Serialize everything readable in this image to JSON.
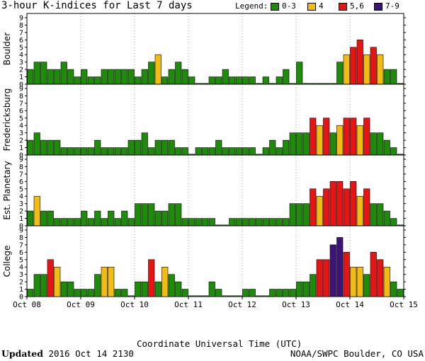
{
  "title": "3-hour K-indices for Last 7 days",
  "legend": {
    "label": "Legend:",
    "entries": [
      {
        "label": "0-3",
        "color": "#1e8c0a"
      },
      {
        "label": "4",
        "color": "#f2bd13"
      },
      {
        "label": "5,6",
        "color": "#e81414"
      },
      {
        "label": "7-9",
        "color": "#3c1478"
      }
    ]
  },
  "footer": {
    "updated_label": "Updated",
    "updated_value": "2016 Oct 14 2130",
    "credit": "NOAA/SWPC Boulder, CO USA"
  },
  "chart_data": {
    "type": "bar",
    "xlabel": "Coordinate Universal Time (UTC)",
    "x_ticks": [
      "Oct 08",
      "Oct 09",
      "Oct 10",
      "Oct 11",
      "Oct 12",
      "Oct 13",
      "Oct 14",
      "Oct 15"
    ],
    "ylim": [
      0,
      9
    ],
    "y_ticks": [
      0,
      1,
      2,
      3,
      4,
      5,
      6,
      7,
      8,
      9
    ],
    "bins_per_day": 8,
    "color_scale": {
      "0-3": "#1e8c0a",
      "4": "#f2bd13",
      "5,6": "#e81414",
      "7-9": "#3c1478"
    },
    "panels": [
      {
        "name": "Boulder",
        "values": [
          2,
          3,
          3,
          2,
          2,
          3,
          2,
          1,
          2,
          1,
          1,
          2,
          2,
          2,
          2,
          2,
          1,
          2,
          3,
          4,
          1,
          2,
          3,
          2,
          1,
          0,
          0,
          1,
          1,
          2,
          1,
          1,
          1,
          1,
          0,
          1,
          0,
          1,
          2,
          0,
          3,
          0,
          0,
          0,
          0,
          0,
          3,
          4,
          5,
          6,
          4,
          5,
          4,
          2,
          2,
          0
        ]
      },
      {
        "name": "Fredericksburg",
        "values": [
          2,
          3,
          2,
          2,
          2,
          1,
          1,
          1,
          1,
          1,
          2,
          1,
          1,
          1,
          1,
          2,
          2,
          3,
          1,
          2,
          2,
          2,
          1,
          1,
          0,
          1,
          1,
          1,
          2,
          1,
          1,
          1,
          1,
          1,
          0,
          1,
          2,
          1,
          2,
          3,
          3,
          3,
          5,
          4,
          5,
          3,
          4,
          5,
          5,
          4,
          5,
          3,
          3,
          2,
          1,
          0
        ]
      },
      {
        "name": "Est. Planetary",
        "values": [
          2,
          4,
          2,
          2,
          1,
          1,
          1,
          1,
          2,
          1,
          2,
          1,
          2,
          1,
          2,
          1,
          3,
          3,
          3,
          2,
          2,
          3,
          3,
          1,
          1,
          1,
          1,
          1,
          0,
          0,
          1,
          1,
          1,
          1,
          1,
          1,
          1,
          1,
          1,
          3,
          3,
          3,
          5,
          4,
          5,
          6,
          6,
          5,
          6,
          4,
          5,
          3,
          3,
          2,
          1,
          0
        ]
      },
      {
        "name": "College",
        "values": [
          1,
          3,
          3,
          5,
          4,
          2,
          2,
          1,
          1,
          1,
          3,
          4,
          4,
          1,
          1,
          0,
          2,
          2,
          5,
          2,
          4,
          3,
          2,
          1,
          0,
          0,
          0,
          2,
          1,
          0,
          0,
          0,
          1,
          1,
          0,
          0,
          1,
          1,
          1,
          1,
          2,
          2,
          3,
          5,
          5,
          7,
          8,
          6,
          4,
          4,
          3,
          6,
          5,
          4,
          2,
          1
        ]
      }
    ]
  }
}
